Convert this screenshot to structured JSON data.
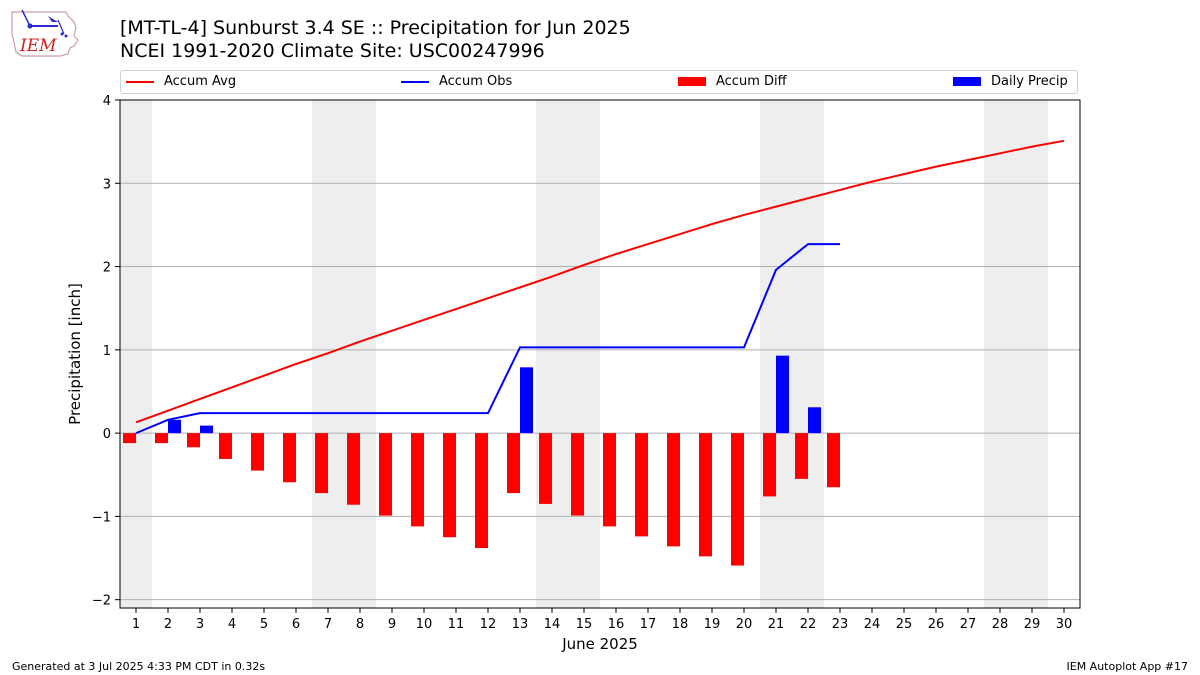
{
  "header": {
    "logo_text": "IEM",
    "title_line1": "[MT-TL-4] Sunburst 3.4 SE :: Precipitation for Jun 2025",
    "title_line2": "NCEI 1991-2020 Climate Site: USC00247996"
  },
  "footer": {
    "left": "Generated at 3 Jul 2025 4:33 PM CDT in 0.32s",
    "right": "IEM Autoplot App #17"
  },
  "chart_data": {
    "type": "bar",
    "xlabel": "June 2025",
    "ylabel": "Precipitation [inch]",
    "ylim": [
      -2.1,
      4.0
    ],
    "xlim": [
      0.5,
      30.5
    ],
    "yticks": [
      -2,
      -1,
      0,
      1,
      2,
      3,
      4
    ],
    "ytick_labels": [
      "−2",
      "−1",
      "0",
      "1",
      "2",
      "3",
      "4"
    ],
    "x": [
      1,
      2,
      3,
      4,
      5,
      6,
      7,
      8,
      9,
      10,
      11,
      12,
      13,
      14,
      15,
      16,
      17,
      18,
      19,
      20,
      21,
      22,
      23,
      24,
      25,
      26,
      27,
      28,
      29,
      30
    ],
    "grid": "horizontal",
    "shaded_weekend_ranges": [
      [
        0.5,
        1.5
      ],
      [
        6.5,
        8.5
      ],
      [
        13.5,
        15.5
      ],
      [
        20.5,
        22.5
      ],
      [
        27.5,
        29.5
      ]
    ],
    "legend_position": "top, above plot",
    "colors": {
      "avg": "#ff0000",
      "obs": "#0000ff",
      "diff": "#ff0000",
      "daily": "#0000ff",
      "weekend": "#eeeeee",
      "grid": "#b0b0b0"
    },
    "series": [
      {
        "name": "Accum Avg",
        "kind": "line",
        "values": [
          0.13,
          0.27,
          0.41,
          0.55,
          0.69,
          0.83,
          0.96,
          1.1,
          1.23,
          1.36,
          1.49,
          1.62,
          1.75,
          1.88,
          2.02,
          2.15,
          2.27,
          2.39,
          2.51,
          2.62,
          2.72,
          2.82,
          2.92,
          3.02,
          3.11,
          3.2,
          3.28,
          3.36,
          3.44,
          3.51
        ]
      },
      {
        "name": "Accum Obs",
        "kind": "line",
        "values": [
          0.0,
          0.16,
          0.24,
          0.24,
          0.24,
          0.24,
          0.24,
          0.24,
          0.24,
          0.24,
          0.24,
          0.24,
          1.03,
          1.03,
          1.03,
          1.03,
          1.03,
          1.03,
          1.03,
          1.03,
          1.96,
          2.27,
          2.27,
          null,
          null,
          null,
          null,
          null,
          null,
          null
        ]
      },
      {
        "name": "Accum Diff",
        "kind": "bar",
        "values": [
          -0.12,
          -0.12,
          -0.17,
          -0.31,
          -0.45,
          -0.59,
          -0.72,
          -0.86,
          -0.99,
          -1.12,
          -1.25,
          -1.38,
          -0.72,
          -0.85,
          -0.99,
          -1.12,
          -1.24,
          -1.36,
          -1.48,
          -1.59,
          -0.76,
          -0.55,
          -0.65,
          null,
          null,
          null,
          null,
          null,
          null,
          null
        ]
      },
      {
        "name": "Daily Precip",
        "kind": "bar",
        "values": [
          0,
          0.16,
          0.09,
          0,
          0,
          0,
          0,
          0,
          0,
          0,
          0,
          0,
          0.79,
          0,
          0,
          0,
          0,
          0,
          0,
          0,
          0.93,
          0.31,
          0,
          null,
          null,
          null,
          null,
          null,
          null,
          null
        ]
      }
    ]
  }
}
